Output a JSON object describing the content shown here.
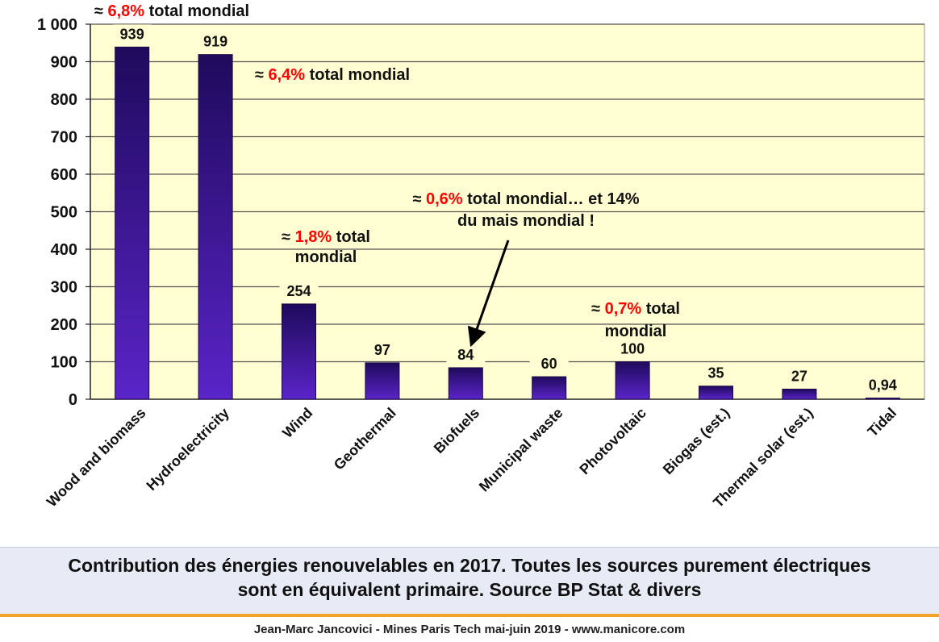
{
  "chart_data": {
    "type": "bar",
    "categories": [
      "Wood and biomass",
      "Hydroelectricity",
      "Wind",
      "Geothermal",
      "Biofuels",
      "Municipal waste",
      "Photovoltaic",
      "Biogas (est.)",
      "Thermal solar (est.)",
      "Tidal"
    ],
    "values": [
      939,
      919,
      254,
      97,
      84,
      60,
      100,
      35,
      27,
      0.94
    ],
    "value_labels": [
      "939",
      "919",
      "254",
      "97",
      "84",
      "60",
      "100",
      "35",
      "27",
      "0,94"
    ],
    "yticks": [
      {
        "value": 0,
        "label": "0"
      },
      {
        "value": 100,
        "label": "100"
      },
      {
        "value": 200,
        "label": "200"
      },
      {
        "value": 300,
        "label": "300"
      },
      {
        "value": 400,
        "label": "400"
      },
      {
        "value": 500,
        "label": "500"
      },
      {
        "value": 600,
        "label": "600"
      },
      {
        "value": 700,
        "label": "700"
      },
      {
        "value": 800,
        "label": "800"
      },
      {
        "value": 900,
        "label": "900"
      },
      {
        "value": 1000,
        "label": "1 000"
      }
    ],
    "ylim": [
      0,
      1000
    ],
    "grid": true,
    "colors": {
      "background": "#fffed2",
      "bar": "#2a0f78",
      "bar_edge": "#1a0848",
      "highlight": "#ff0000",
      "gridline": "#555555"
    },
    "annotations": [
      {
        "id": "wood",
        "bar_index": 0,
        "lines": [
          [
            "≈ ",
            "6,8%",
            " total mondial"
          ]
        ]
      },
      {
        "id": "hydro",
        "bar_index": 1,
        "lines": [
          [
            "≈ ",
            "6,4%",
            " total mondial"
          ]
        ]
      },
      {
        "id": "wind",
        "bar_index": 2,
        "lines": [
          [
            "≈ ",
            "1,8%",
            " total"
          ],
          [
            "mondial"
          ]
        ]
      },
      {
        "id": "biofuels",
        "bar_index": 4,
        "lines": [
          [
            "≈ ",
            "0,6%",
            " total mondial… et 14%"
          ],
          [
            "du mais mondial !"
          ]
        ],
        "arrow": true
      },
      {
        "id": "pv",
        "bar_index": 6,
        "lines": [
          [
            "≈ ",
            "0,7%",
            " total"
          ],
          [
            "mondial"
          ]
        ]
      }
    ]
  },
  "caption": {
    "line1": "Contribution des énergies renouvelables en 2017. Toutes les sources purement électriques",
    "line2": "sont en équivalent primaire. Source BP Stat & divers"
  },
  "footer": "Jean-Marc Jancovici - Mines Paris Tech mai-juin 2019 - www.manicore.com"
}
